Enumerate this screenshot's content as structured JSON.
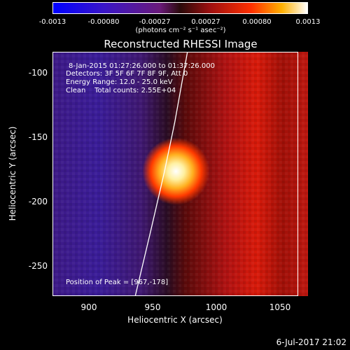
{
  "colorbar": {
    "ticks": [
      "-0.0013",
      "-0.00080",
      "-0.00027",
      "0.00027",
      "0.00080",
      "0.0013"
    ],
    "units_label": "(photons cm⁻² s⁻¹ asec⁻²)"
  },
  "chart_data": {
    "type": "heatmap",
    "title": "Reconstructed RHESSI Image",
    "xlabel": "Heliocentric X (arcsec)",
    "ylabel": "Heliocentric Y (arcsec)",
    "xlim": [
      870,
      1063
    ],
    "ylim": [
      -275,
      -85
    ],
    "xticks": [
      "900",
      "950",
      "1000",
      "1050"
    ],
    "yticks": [
      "-100",
      "-150",
      "-200",
      "-250"
    ],
    "color_range": [
      -0.0013,
      0.0013
    ],
    "colormap": "blue-purple-red-yellow-white",
    "peak": {
      "x": 967,
      "y": -178
    },
    "limb_curve": [
      [
        935,
        -275
      ],
      [
        947,
        -225
      ],
      [
        958,
        -178
      ],
      [
        966,
        -140
      ],
      [
        976,
        -85
      ]
    ],
    "annotations": {
      "time": "8-Jan-2015 01:27:26.000 to 01:37:26.000",
      "detectors": "Detectors: 3F 5F 6F 7F 8F 9F, Att 0",
      "energy": "Energy Range: 12.0 - 25.0 keV",
      "clean": "Clean    Total counts: 2.55E+04",
      "peak_label": "Position of Peak = [967,-178]"
    }
  },
  "footer": {
    "date": "6-Jul-2017 21:02"
  }
}
